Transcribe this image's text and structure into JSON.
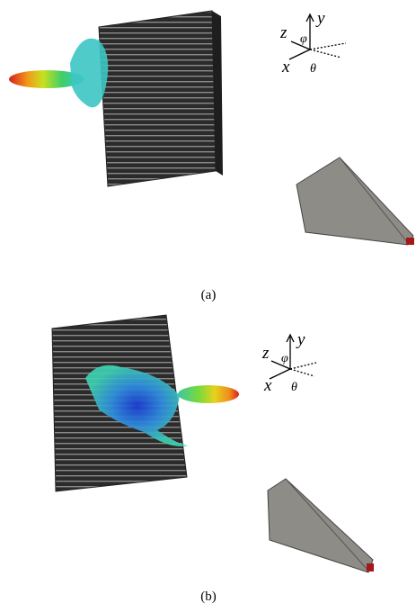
{
  "figure": {
    "panels": [
      {
        "caption": "(a)",
        "axis_labels": {
          "z": "z",
          "y": "y",
          "x": "x",
          "phi": "φ",
          "theta": "θ"
        }
      },
      {
        "caption": "(b)",
        "axis_labels": {
          "z": "z",
          "y": "y",
          "x": "x",
          "phi": "φ",
          "theta": "θ"
        }
      }
    ]
  }
}
